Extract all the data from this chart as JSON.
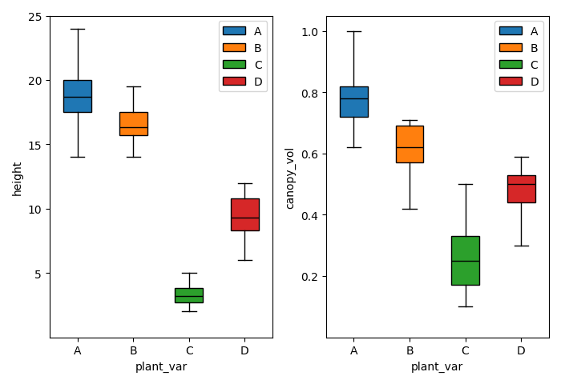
{
  "height": {
    "A": {
      "whislo": 14.0,
      "q1": 17.5,
      "med": 18.7,
      "q3": 20.0,
      "whishi": 24.0
    },
    "B": {
      "whislo": 14.0,
      "q1": 15.7,
      "med": 16.3,
      "q3": 17.5,
      "whishi": 19.5
    },
    "C": {
      "whislo": 2.0,
      "q1": 2.7,
      "med": 3.2,
      "q3": 3.8,
      "whishi": 5.0
    },
    "D": {
      "whislo": 6.0,
      "q1": 8.3,
      "med": 9.3,
      "q3": 10.8,
      "whishi": 12.0
    }
  },
  "canopy_vol": {
    "A": {
      "whislo": 0.62,
      "q1": 0.72,
      "med": 0.78,
      "q3": 0.82,
      "whishi": 1.0
    },
    "B": {
      "whislo": 0.42,
      "q1": 0.57,
      "med": 0.62,
      "q3": 0.69,
      "whishi": 0.71
    },
    "C": {
      "whislo": 0.1,
      "q1": 0.17,
      "med": 0.25,
      "q3": 0.33,
      "whishi": 0.5
    },
    "D": {
      "whislo": 0.3,
      "q1": 0.44,
      "med": 0.5,
      "q3": 0.53,
      "whishi": 0.59
    }
  },
  "categories": [
    "A",
    "B",
    "C",
    "D"
  ],
  "colors": {
    "A": "#1f77b4",
    "B": "#ff7f0e",
    "C": "#2ca02c",
    "D": "#d62728"
  },
  "ylabel_left": "height",
  "ylabel_right": "canopy_vol",
  "xlabel": "plant_var",
  "ylim_left": [
    0,
    25
  ],
  "ylim_right": [
    0.0,
    1.05
  ],
  "yticks_left": [
    5,
    10,
    15,
    20,
    25
  ],
  "yticks_right": [
    0.2,
    0.4,
    0.6,
    0.8,
    1.0
  ],
  "figsize": [
    7.0,
    4.81
  ],
  "dpi": 100
}
